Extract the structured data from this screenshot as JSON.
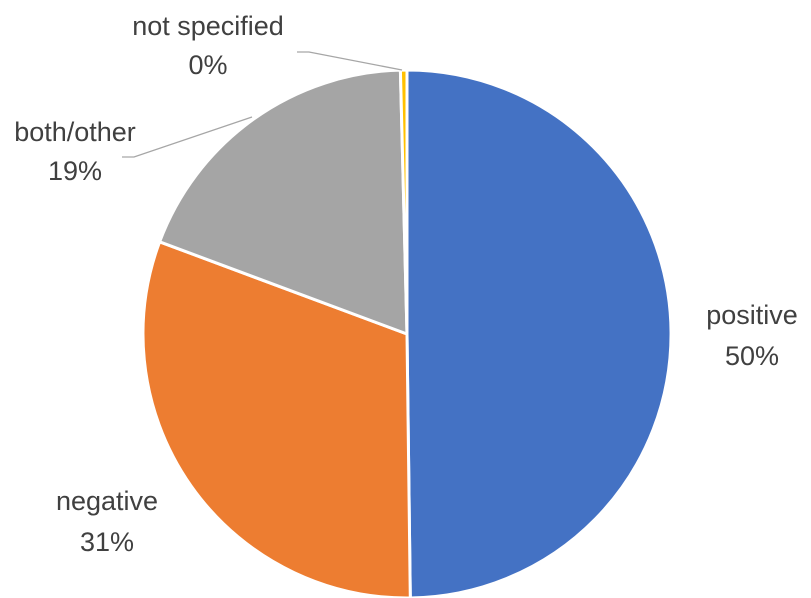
{
  "chart_data": {
    "type": "pie",
    "title": "",
    "slices": [
      {
        "label": "positive",
        "value": 50,
        "display": "50%",
        "color": "#4472C4"
      },
      {
        "label": "negative",
        "value": 31,
        "display": "31%",
        "color": "#ED7D31"
      },
      {
        "label": "both/other",
        "value": 19,
        "display": "19%",
        "color": "#A5A5A5"
      },
      {
        "label": "not specified",
        "value": 0.4,
        "display": "0%",
        "color": "#FFC000"
      }
    ],
    "labels_show": [
      "category",
      "percentage"
    ],
    "legend": "none"
  }
}
